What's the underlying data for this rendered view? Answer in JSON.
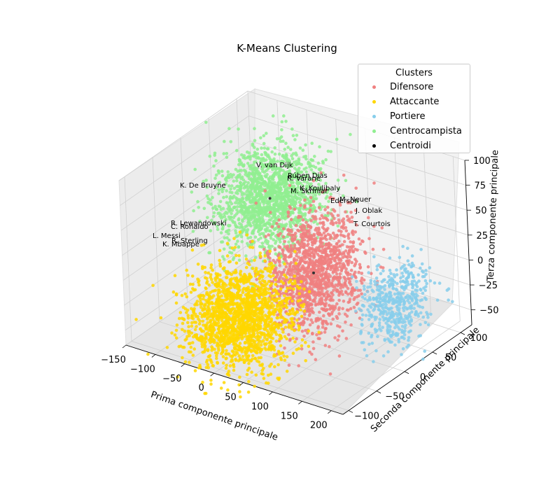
{
  "chart_data": {
    "type": "scatter",
    "projection": "3d",
    "title": "K-Means Clustering",
    "xlabel": "Prima componente principale",
    "ylabel": "Seconda componente principale",
    "zlabel": "Terza componente principale",
    "xlim": [
      -150,
      220
    ],
    "ylim": [
      -110,
      120
    ],
    "zlim": [
      -65,
      100
    ],
    "xticks": [
      -150,
      -100,
      -50,
      0,
      50,
      100,
      150,
      200
    ],
    "yticks": [
      -100,
      -50,
      0,
      50,
      100
    ],
    "zticks": [
      -50,
      -25,
      0,
      25,
      50,
      75,
      100
    ],
    "grid": true,
    "legend": {
      "title": "Clusters",
      "placement": "top-right"
    },
    "series": [
      {
        "name": "Difensore",
        "color": "#f08080",
        "center": [
          60,
          10,
          0
        ],
        "spread": [
          28,
          30,
          28
        ]
      },
      {
        "name": "Attaccante",
        "color": "#ffd700",
        "center": [
          -20,
          -40,
          -40
        ],
        "spread": [
          35,
          30,
          22
        ]
      },
      {
        "name": "Portiere",
        "color": "#87ceeb",
        "center": [
          170,
          40,
          -20
        ],
        "spread": [
          18,
          25,
          20
        ]
      },
      {
        "name": "Centrocampista",
        "color": "#90ee90",
        "center": [
          -30,
          30,
          50
        ],
        "spread": [
          35,
          30,
          22
        ]
      },
      {
        "name": "Centroidi",
        "color": "#000000",
        "points": [
          [
            60,
            10,
            0
          ],
          [
            -30,
            30,
            50
          ]
        ]
      }
    ],
    "annotations": [
      "V. van Dijk",
      "Rúben Dias",
      "R. Varane",
      "M. Škriniar",
      "K. Koulibaly",
      "Ederson",
      "M. Neuer",
      "J. Oblak",
      "T. Courtois",
      "K. De Bruyne",
      "R. Lewandowski",
      "C. Ronaldo",
      "L. Messi",
      "K. Mbappé",
      "R. Sterling"
    ]
  }
}
